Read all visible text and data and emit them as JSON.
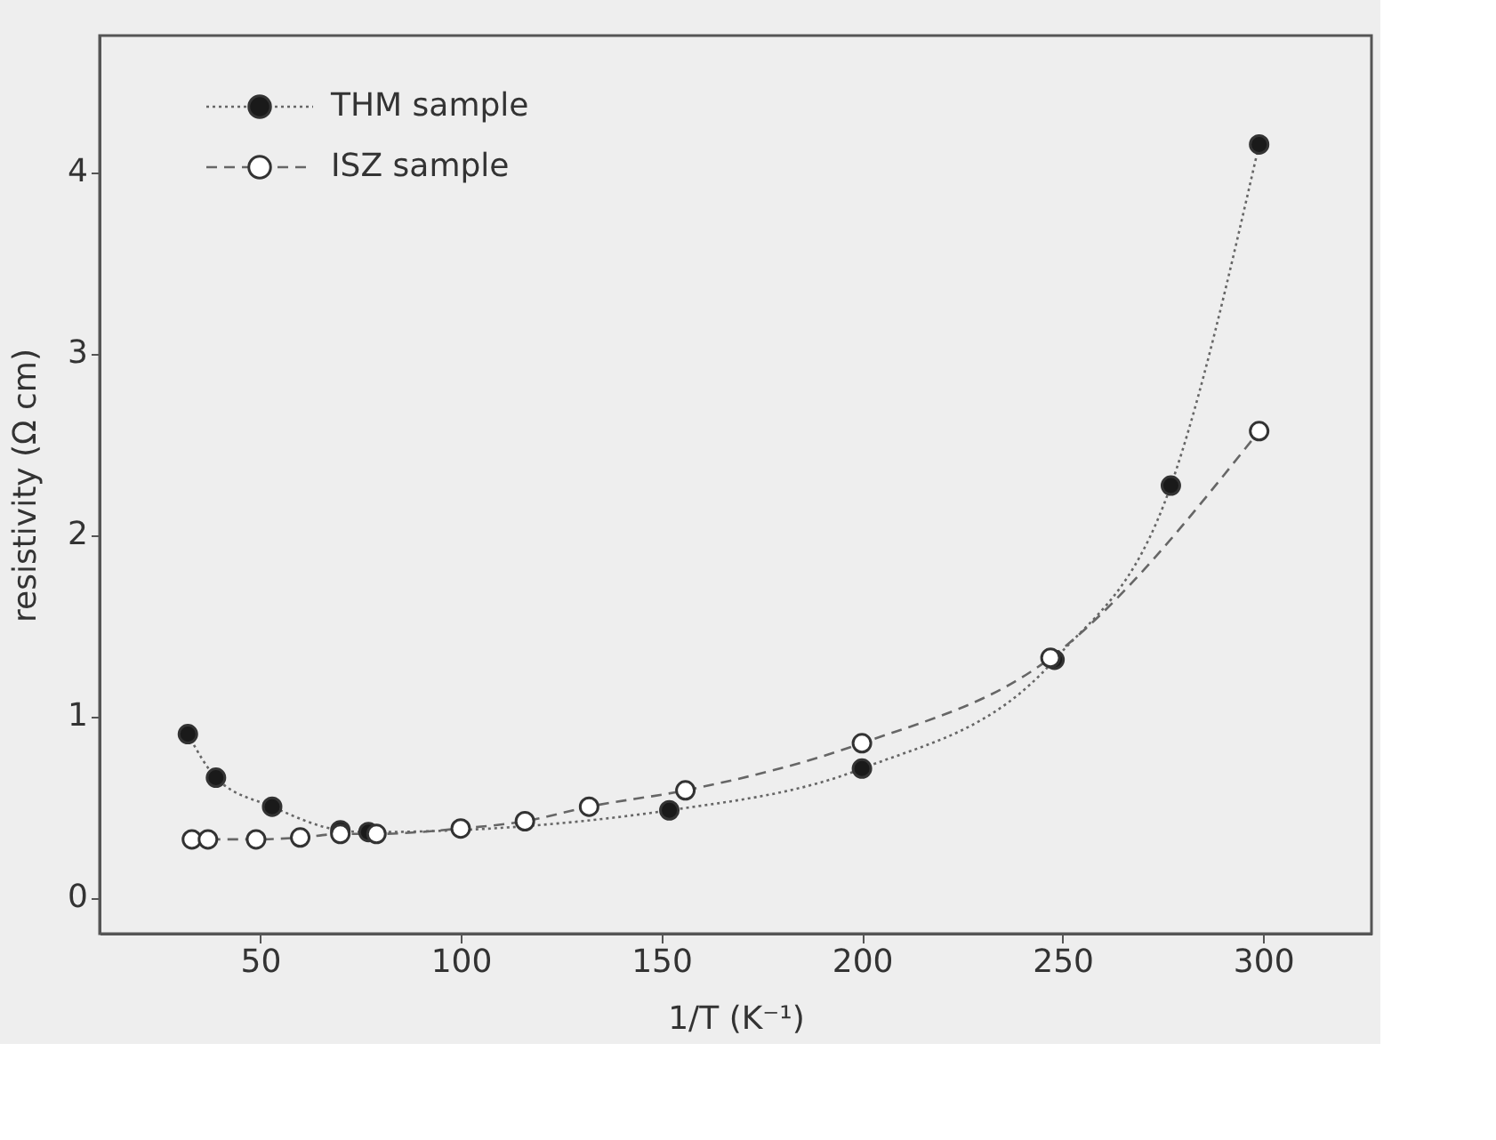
{
  "chart_data": {
    "type": "line",
    "xlabel": "1/T (K⁻¹)",
    "ylabel": "resistivity (Ω cm)",
    "xlim": [
      10,
      327
    ],
    "ylim": [
      -0.2,
      4.75
    ],
    "xticks": [
      50,
      100,
      150,
      200,
      250,
      300
    ],
    "yticks": [
      0,
      1,
      2,
      3,
      4
    ],
    "grid": false,
    "legend": "top left",
    "marker": "circle",
    "series": [
      {
        "name": "THM sample",
        "color": "#1a1a1a",
        "line_style": "dotted",
        "x": [
          32,
          39,
          53,
          70,
          77,
          152,
          200,
          248,
          277,
          299
        ],
        "values": [
          0.9,
          0.66,
          0.5,
          0.37,
          0.36,
          0.48,
          0.71,
          1.31,
          2.27,
          4.15
        ]
      },
      {
        "name": "ISZ sample",
        "color": "#ffffff",
        "line_style": "dashed",
        "x": [
          33,
          37,
          49,
          60,
          70,
          79,
          100,
          116,
          132,
          156,
          200,
          247,
          299
        ],
        "values": [
          0.32,
          0.32,
          0.32,
          0.33,
          0.35,
          0.35,
          0.38,
          0.42,
          0.5,
          0.59,
          0.85,
          1.32,
          2.57
        ]
      }
    ]
  }
}
